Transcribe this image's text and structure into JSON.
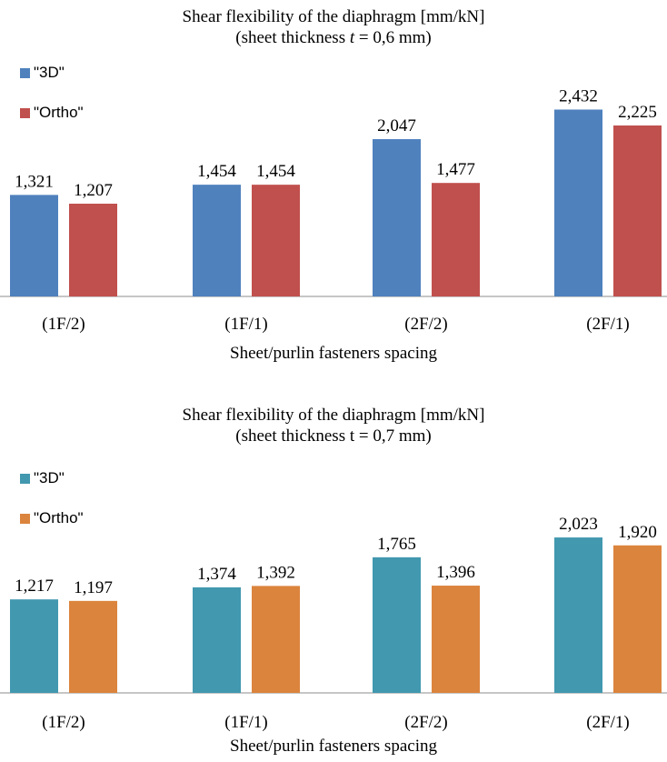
{
  "chart_data": [
    {
      "type": "bar",
      "title": "Shear flexibility of the diaphragm [mm/kN]",
      "subtitle_parts": [
        "(sheet thickness ",
        "t",
        " = 0,6 mm)"
      ],
      "xlabel": "Sheet/purlin fasteners spacing",
      "ylabel": "",
      "categories": [
        "(1F/2)",
        "(1F/1)",
        "(2F/2)",
        "(2F/1)"
      ],
      "series": [
        {
          "name": "\"3D\"",
          "color": "#4f81bd",
          "values": [
            1.321,
            1.454,
            2.047,
            2.432
          ],
          "labels": [
            "1,321",
            "1,454",
            "2,047",
            "2,432"
          ]
        },
        {
          "name": "\"Ortho\"",
          "color": "#c0504d",
          "values": [
            1.207,
            1.454,
            1.477,
            2.225
          ],
          "labels": [
            "1,207",
            "1,454",
            "1,477",
            "2,225"
          ]
        }
      ],
      "ylim": [
        0,
        2.6
      ],
      "grid": false,
      "legend": "top-left"
    },
    {
      "type": "bar",
      "title": "Shear flexibility of the diaphragm [mm/kN]",
      "subtitle_parts": [
        "(sheet thickness t = 0,7 mm)",
        "",
        ""
      ],
      "xlabel": "Sheet/purlin fasteners spacing",
      "ylabel": "",
      "categories": [
        "(1F/2)",
        "(1F/1)",
        "(2F/2)",
        "(2F/1)"
      ],
      "series": [
        {
          "name": "\"3D\"",
          "color": "#4198af",
          "values": [
            1.217,
            1.374,
            1.765,
            2.023
          ],
          "labels": [
            "1,217",
            "1,374",
            "1,765",
            "2,023"
          ]
        },
        {
          "name": "\"Ortho\"",
          "color": "#db843d",
          "values": [
            1.197,
            1.392,
            1.396,
            1.92
          ],
          "labels": [
            "1,197",
            "1,392",
            "1,396",
            "1,920"
          ]
        }
      ],
      "ylim": [
        0,
        2.6
      ],
      "grid": false,
      "legend": "top-left"
    }
  ]
}
